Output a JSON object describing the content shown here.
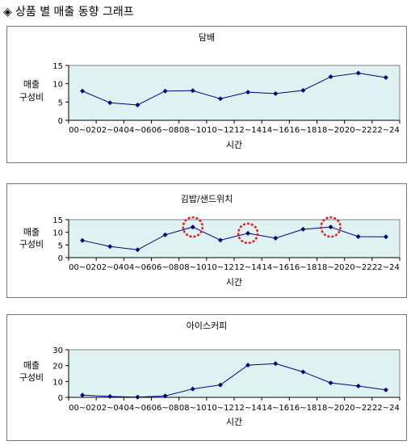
{
  "page_title": "상품 별 매출 동향 그래프",
  "colors": {
    "plot_bg": "#dff2f2",
    "line": "#000080",
    "marker": "#000080",
    "highlight": "#e02020"
  },
  "chart_data": [
    {
      "type": "line",
      "title": "담배",
      "xlabel": "시간",
      "ylabel": [
        "매출",
        "구성비"
      ],
      "categories": [
        "00~02",
        "02~04",
        "04~06",
        "06~08",
        "08~10",
        "10~12",
        "12~14",
        "14~16",
        "16~18",
        "18~20",
        "20~22",
        "22~24"
      ],
      "values": [
        8,
        4.8,
        4.2,
        8,
        8.1,
        5.9,
        7.7,
        7.3,
        8.2,
        11.9,
        12.9,
        11.7
      ],
      "ylim": [
        0,
        15
      ],
      "yticks": [
        0,
        5,
        10,
        15
      ],
      "grid": false,
      "highlights": []
    },
    {
      "type": "line",
      "title": "김밥/샌드위치",
      "xlabel": "시간",
      "ylabel": [
        "매출",
        "구성비"
      ],
      "categories": [
        "00~02",
        "02~04",
        "04~06",
        "06~08",
        "08~10",
        "10~12",
        "12~14",
        "14~16",
        "16~18",
        "18~20",
        "20~22",
        "22~24"
      ],
      "values": [
        6.8,
        4.4,
        3.1,
        9.0,
        12.1,
        6.9,
        9.6,
        7.7,
        11.2,
        12.1,
        8.3,
        8.2
      ],
      "ylim": [
        0,
        15
      ],
      "yticks": [
        0,
        5,
        10,
        15
      ],
      "grid": false,
      "highlights": [
        4,
        6,
        9
      ]
    },
    {
      "type": "line",
      "title": "아이스커피",
      "xlabel": "시간",
      "ylabel": [
        "매출",
        "구성비"
      ],
      "categories": [
        "00~02",
        "02~04",
        "04~06",
        "06~08",
        "08~10",
        "10~12",
        "12~14",
        "14~16",
        "16~18",
        "18~20",
        "20~22",
        "22~24"
      ],
      "values": [
        1.4,
        0.6,
        0.1,
        0.9,
        5.3,
        7.8,
        20.3,
        21.2,
        16.0,
        9.1,
        7.1,
        4.7
      ],
      "ylim": [
        0,
        30
      ],
      "yticks": [
        0,
        10,
        20,
        30
      ],
      "grid": false,
      "highlights": []
    }
  ]
}
